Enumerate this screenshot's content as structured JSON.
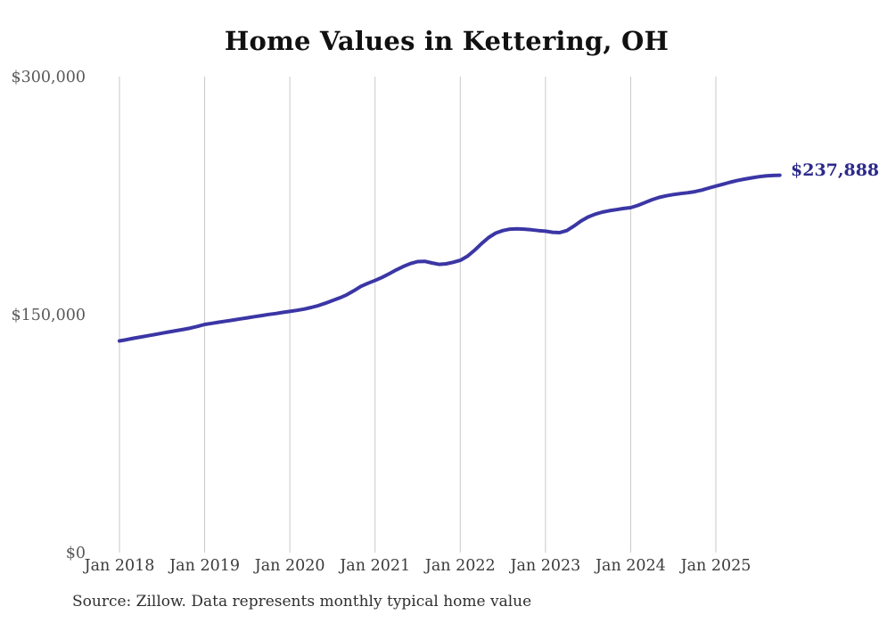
{
  "title": "Home Values in Kettering, OH",
  "source_note": "Source: Zillow. Data represents monthly typical home value",
  "end_label": "$237,888",
  "colors": {
    "line": "#3b36a5",
    "end_label": "#2d2a8b",
    "gridline": "#c9c9c9",
    "title": "#111111",
    "x_tick": "#3b3b3b",
    "y_tick": "#595959",
    "source": "#2f2f2f",
    "background": "#ffffff"
  },
  "chart_data": {
    "type": "line",
    "title": "Home Values in Kettering, OH",
    "xlabel": "",
    "ylabel": "",
    "ylim": [
      0,
      300000
    ],
    "grid": "vertical-only",
    "legend": "none",
    "x_unit": "month",
    "x_start_month": "2018-01",
    "x_end_month": "2025-10",
    "y_ticks": [
      {
        "value": 0,
        "label": "$0"
      },
      {
        "value": 150000,
        "label": "$150,000"
      },
      {
        "value": 300000,
        "label": "$300,000"
      }
    ],
    "x_ticks": [
      {
        "month_index": 0,
        "label": "Jan 2018"
      },
      {
        "month_index": 12,
        "label": "Jan 2019"
      },
      {
        "month_index": 24,
        "label": "Jan 2020"
      },
      {
        "month_index": 36,
        "label": "Jan 2021"
      },
      {
        "month_index": 48,
        "label": "Jan 2022"
      },
      {
        "month_index": 60,
        "label": "Jan 2023"
      },
      {
        "month_index": 72,
        "label": "Jan 2024"
      },
      {
        "month_index": 84,
        "label": "Jan 2025"
      }
    ],
    "annotation": {
      "text": "$237,888",
      "at": "last-point"
    },
    "series": [
      {
        "name": "Typical home value (monthly)",
        "color": "#3b36a5",
        "last_value": 237888,
        "values": [
          133400,
          134200,
          135100,
          135900,
          136700,
          137500,
          138300,
          139100,
          139900,
          140700,
          141500,
          142600,
          143800,
          144500,
          145200,
          145900,
          146600,
          147300,
          148000,
          148700,
          149400,
          150100,
          150700,
          151400,
          152000,
          152700,
          153500,
          154500,
          155700,
          157200,
          158800,
          160500,
          162500,
          165000,
          167800,
          169800,
          171500,
          173500,
          175800,
          178200,
          180400,
          182200,
          183400,
          183600,
          182600,
          181700,
          182000,
          183000,
          184200,
          186800,
          190500,
          194800,
          198600,
          201400,
          203000,
          203900,
          204100,
          203900,
          203500,
          203000,
          202600,
          201900,
          201700,
          203000,
          205800,
          209000,
          211500,
          213300,
          214600,
          215500,
          216200,
          216900,
          217400,
          218800,
          220600,
          222400,
          223900,
          224900,
          225700,
          226300,
          226800,
          227500,
          228500,
          229800,
          231000,
          232200,
          233400,
          234500,
          235400,
          236200,
          236900,
          237400,
          237700,
          237888
        ]
      }
    ]
  }
}
